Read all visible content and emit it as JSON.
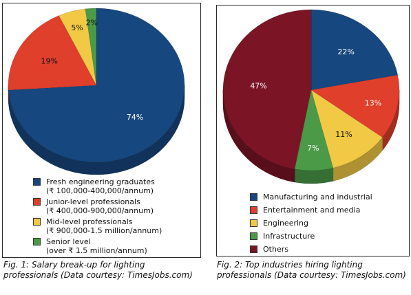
{
  "chart_data": [
    {
      "type": "pie",
      "labels": [
        "Fresh engineering graduates (₹ 100,000-400,000/annum)",
        "Junior-level professionals (₹ 400,000-900,000/annum)",
        "Mid-level professionals (₹ 900,000-1.5 million/annum)",
        "Senior level (over ₹ 1.5 million/annum)"
      ],
      "values": [
        74,
        19,
        5,
        2
      ],
      "value_labels": [
        "74%",
        "19%",
        "5%",
        "2%"
      ],
      "colors": [
        "#17477f",
        "#e03f2b",
        "#f1c945",
        "#4a9a48"
      ],
      "legend": [
        {
          "line1": "Fresh engineering graduates",
          "line2": "(₹ 100,000-400,000/annum)"
        },
        {
          "line1": "Junior-level professionals",
          "line2": "(₹ 400,000-900,000/annum)"
        },
        {
          "line1": "Mid-level professionals",
          "line2": "(₹ 900,000-1.5 million/annum)"
        },
        {
          "line1": "Senior level",
          "line2": "(over ₹ 1.5 million/annum)"
        }
      ],
      "caption": "Fig. 1: Salary break-up for lighting professionals (Data courtesy: TimesJobs.com)"
    },
    {
      "type": "pie",
      "labels": [
        "Manufacturing and industrial",
        "Entertainment and media",
        "Engineering",
        "Infrastructure",
        "Others"
      ],
      "values": [
        22,
        13,
        11,
        7,
        47
      ],
      "value_labels": [
        "22%",
        "13%",
        "11%",
        "7%",
        "47%"
      ],
      "colors": [
        "#17477f",
        "#e03f2b",
        "#f1c945",
        "#4a9a48",
        "#7b1526"
      ],
      "legend": [
        {
          "line1": "Manufacturing and industrial"
        },
        {
          "line1": "Entertainment and media"
        },
        {
          "line1": "Engineering"
        },
        {
          "line1": "Infrastructure"
        },
        {
          "line1": "Others"
        }
      ],
      "caption": "Fig. 2: Top industries hiring lighting professionals (Data courtesy: TimesJobs.com)"
    }
  ]
}
